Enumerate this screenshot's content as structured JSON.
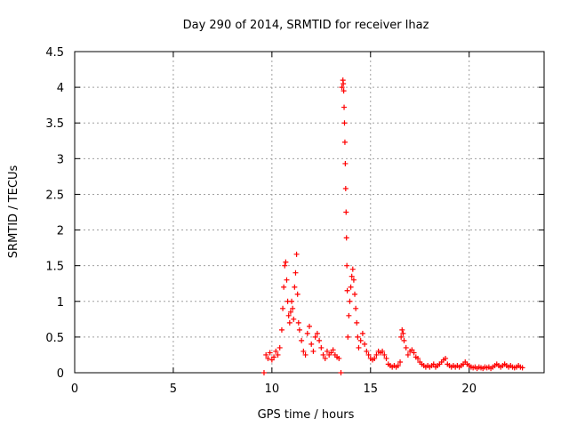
{
  "chart_data": {
    "type": "scatter",
    "title": "Day 290 of 2014, SRMTID for receiver lhaz",
    "xlabel": "GPS time / hours",
    "ylabel": "SRMTID / TECUs",
    "xlim": [
      0,
      23.8
    ],
    "ylim": [
      0,
      4.5
    ],
    "x_ticks": [
      0,
      5,
      10,
      15,
      20
    ],
    "y_ticks": [
      0,
      0.5,
      1,
      1.5,
      2,
      2.5,
      3,
      3.5,
      4,
      4.5
    ],
    "x_tick_labels": [
      "0",
      "5",
      "10",
      "15",
      "20"
    ],
    "y_tick_labels": [
      "0",
      "0.5",
      "1",
      "1.5",
      "2",
      "2.5",
      "3",
      "3.5",
      "4",
      "4.5"
    ],
    "grid": true,
    "marker": "+",
    "series": [
      {
        "name": "lhaz",
        "color": "#ff0000",
        "points": [
          [
            9.6,
            0.0
          ],
          [
            9.7,
            0.25
          ],
          [
            9.8,
            0.2
          ],
          [
            9.9,
            0.28
          ],
          [
            10.0,
            0.18
          ],
          [
            10.1,
            0.22
          ],
          [
            10.2,
            0.3
          ],
          [
            10.3,
            0.25
          ],
          [
            10.4,
            0.35
          ],
          [
            10.5,
            0.6
          ],
          [
            10.55,
            0.9
          ],
          [
            10.6,
            1.2
          ],
          [
            10.65,
            1.5
          ],
          [
            10.7,
            1.55
          ],
          [
            10.75,
            1.3
          ],
          [
            10.8,
            1.0
          ],
          [
            10.85,
            0.8
          ],
          [
            10.9,
            0.7
          ],
          [
            10.95,
            0.85
          ],
          [
            11.0,
            1.0
          ],
          [
            11.05,
            0.9
          ],
          [
            11.1,
            0.75
          ],
          [
            11.15,
            1.2
          ],
          [
            11.2,
            1.4
          ],
          [
            11.25,
            1.66
          ],
          [
            11.3,
            1.1
          ],
          [
            11.35,
            0.7
          ],
          [
            11.4,
            0.6
          ],
          [
            11.5,
            0.45
          ],
          [
            11.6,
            0.3
          ],
          [
            11.7,
            0.25
          ],
          [
            11.8,
            0.55
          ],
          [
            11.9,
            0.65
          ],
          [
            12.0,
            0.4
          ],
          [
            12.1,
            0.3
          ],
          [
            12.2,
            0.5
          ],
          [
            12.3,
            0.55
          ],
          [
            12.4,
            0.45
          ],
          [
            12.5,
            0.35
          ],
          [
            12.6,
            0.25
          ],
          [
            12.7,
            0.2
          ],
          [
            12.8,
            0.3
          ],
          [
            12.9,
            0.25
          ],
          [
            13.0,
            0.28
          ],
          [
            13.1,
            0.32
          ],
          [
            13.2,
            0.25
          ],
          [
            13.3,
            0.22
          ],
          [
            13.4,
            0.2
          ],
          [
            13.5,
            0.0
          ],
          [
            13.55,
            4.0
          ],
          [
            13.6,
            4.1
          ],
          [
            13.62,
            4.05
          ],
          [
            13.64,
            3.95
          ],
          [
            13.66,
            3.72
          ],
          [
            13.68,
            3.5
          ],
          [
            13.7,
            3.23
          ],
          [
            13.72,
            2.93
          ],
          [
            13.74,
            2.58
          ],
          [
            13.76,
            2.25
          ],
          [
            13.78,
            1.89
          ],
          [
            13.8,
            1.5
          ],
          [
            13.82,
            1.15
          ],
          [
            13.85,
            0.5
          ],
          [
            13.9,
            0.8
          ],
          [
            13.95,
            1.0
          ],
          [
            14.0,
            1.2
          ],
          [
            14.05,
            1.35
          ],
          [
            14.1,
            1.45
          ],
          [
            14.15,
            1.3
          ],
          [
            14.2,
            1.1
          ],
          [
            14.25,
            0.9
          ],
          [
            14.3,
            0.7
          ],
          [
            14.35,
            0.5
          ],
          [
            14.4,
            0.35
          ],
          [
            14.5,
            0.45
          ],
          [
            14.6,
            0.55
          ],
          [
            14.7,
            0.4
          ],
          [
            14.8,
            0.3
          ],
          [
            14.9,
            0.25
          ],
          [
            15.0,
            0.2
          ],
          [
            15.1,
            0.18
          ],
          [
            15.2,
            0.2
          ],
          [
            15.3,
            0.25
          ],
          [
            15.4,
            0.3
          ],
          [
            15.5,
            0.28
          ],
          [
            15.6,
            0.3
          ],
          [
            15.7,
            0.25
          ],
          [
            15.8,
            0.2
          ],
          [
            15.9,
            0.12
          ],
          [
            16.0,
            0.1
          ],
          [
            16.1,
            0.08
          ],
          [
            16.2,
            0.1
          ],
          [
            16.3,
            0.08
          ],
          [
            16.4,
            0.1
          ],
          [
            16.5,
            0.15
          ],
          [
            16.55,
            0.5
          ],
          [
            16.6,
            0.6
          ],
          [
            16.65,
            0.55
          ],
          [
            16.7,
            0.45
          ],
          [
            16.8,
            0.35
          ],
          [
            16.9,
            0.25
          ],
          [
            17.0,
            0.3
          ],
          [
            17.1,
            0.32
          ],
          [
            17.2,
            0.28
          ],
          [
            17.3,
            0.22
          ],
          [
            17.4,
            0.2
          ],
          [
            17.5,
            0.15
          ],
          [
            17.6,
            0.12
          ],
          [
            17.7,
            0.1
          ],
          [
            17.8,
            0.08
          ],
          [
            17.9,
            0.1
          ],
          [
            18.0,
            0.08
          ],
          [
            18.1,
            0.1
          ],
          [
            18.2,
            0.12
          ],
          [
            18.3,
            0.08
          ],
          [
            18.4,
            0.1
          ],
          [
            18.5,
            0.12
          ],
          [
            18.6,
            0.15
          ],
          [
            18.7,
            0.18
          ],
          [
            18.8,
            0.2
          ],
          [
            18.9,
            0.12
          ],
          [
            19.0,
            0.1
          ],
          [
            19.1,
            0.08
          ],
          [
            19.2,
            0.1
          ],
          [
            19.3,
            0.08
          ],
          [
            19.4,
            0.1
          ],
          [
            19.5,
            0.08
          ],
          [
            19.6,
            0.1
          ],
          [
            19.7,
            0.12
          ],
          [
            19.8,
            0.15
          ],
          [
            19.9,
            0.12
          ],
          [
            20.0,
            0.1
          ],
          [
            20.1,
            0.08
          ],
          [
            20.2,
            0.07
          ],
          [
            20.3,
            0.08
          ],
          [
            20.4,
            0.06
          ],
          [
            20.5,
            0.08
          ],
          [
            20.6,
            0.07
          ],
          [
            20.7,
            0.06
          ],
          [
            20.8,
            0.08
          ],
          [
            20.9,
            0.07
          ],
          [
            21.0,
            0.08
          ],
          [
            21.1,
            0.06
          ],
          [
            21.2,
            0.08
          ],
          [
            21.3,
            0.1
          ],
          [
            21.4,
            0.12
          ],
          [
            21.5,
            0.1
          ],
          [
            21.6,
            0.08
          ],
          [
            21.7,
            0.1
          ],
          [
            21.8,
            0.12
          ],
          [
            21.9,
            0.1
          ],
          [
            22.0,
            0.08
          ],
          [
            22.1,
            0.1
          ],
          [
            22.2,
            0.08
          ],
          [
            22.3,
            0.07
          ],
          [
            22.4,
            0.08
          ],
          [
            22.5,
            0.1
          ],
          [
            22.6,
            0.08
          ],
          [
            22.7,
            0.07
          ]
        ]
      }
    ]
  }
}
